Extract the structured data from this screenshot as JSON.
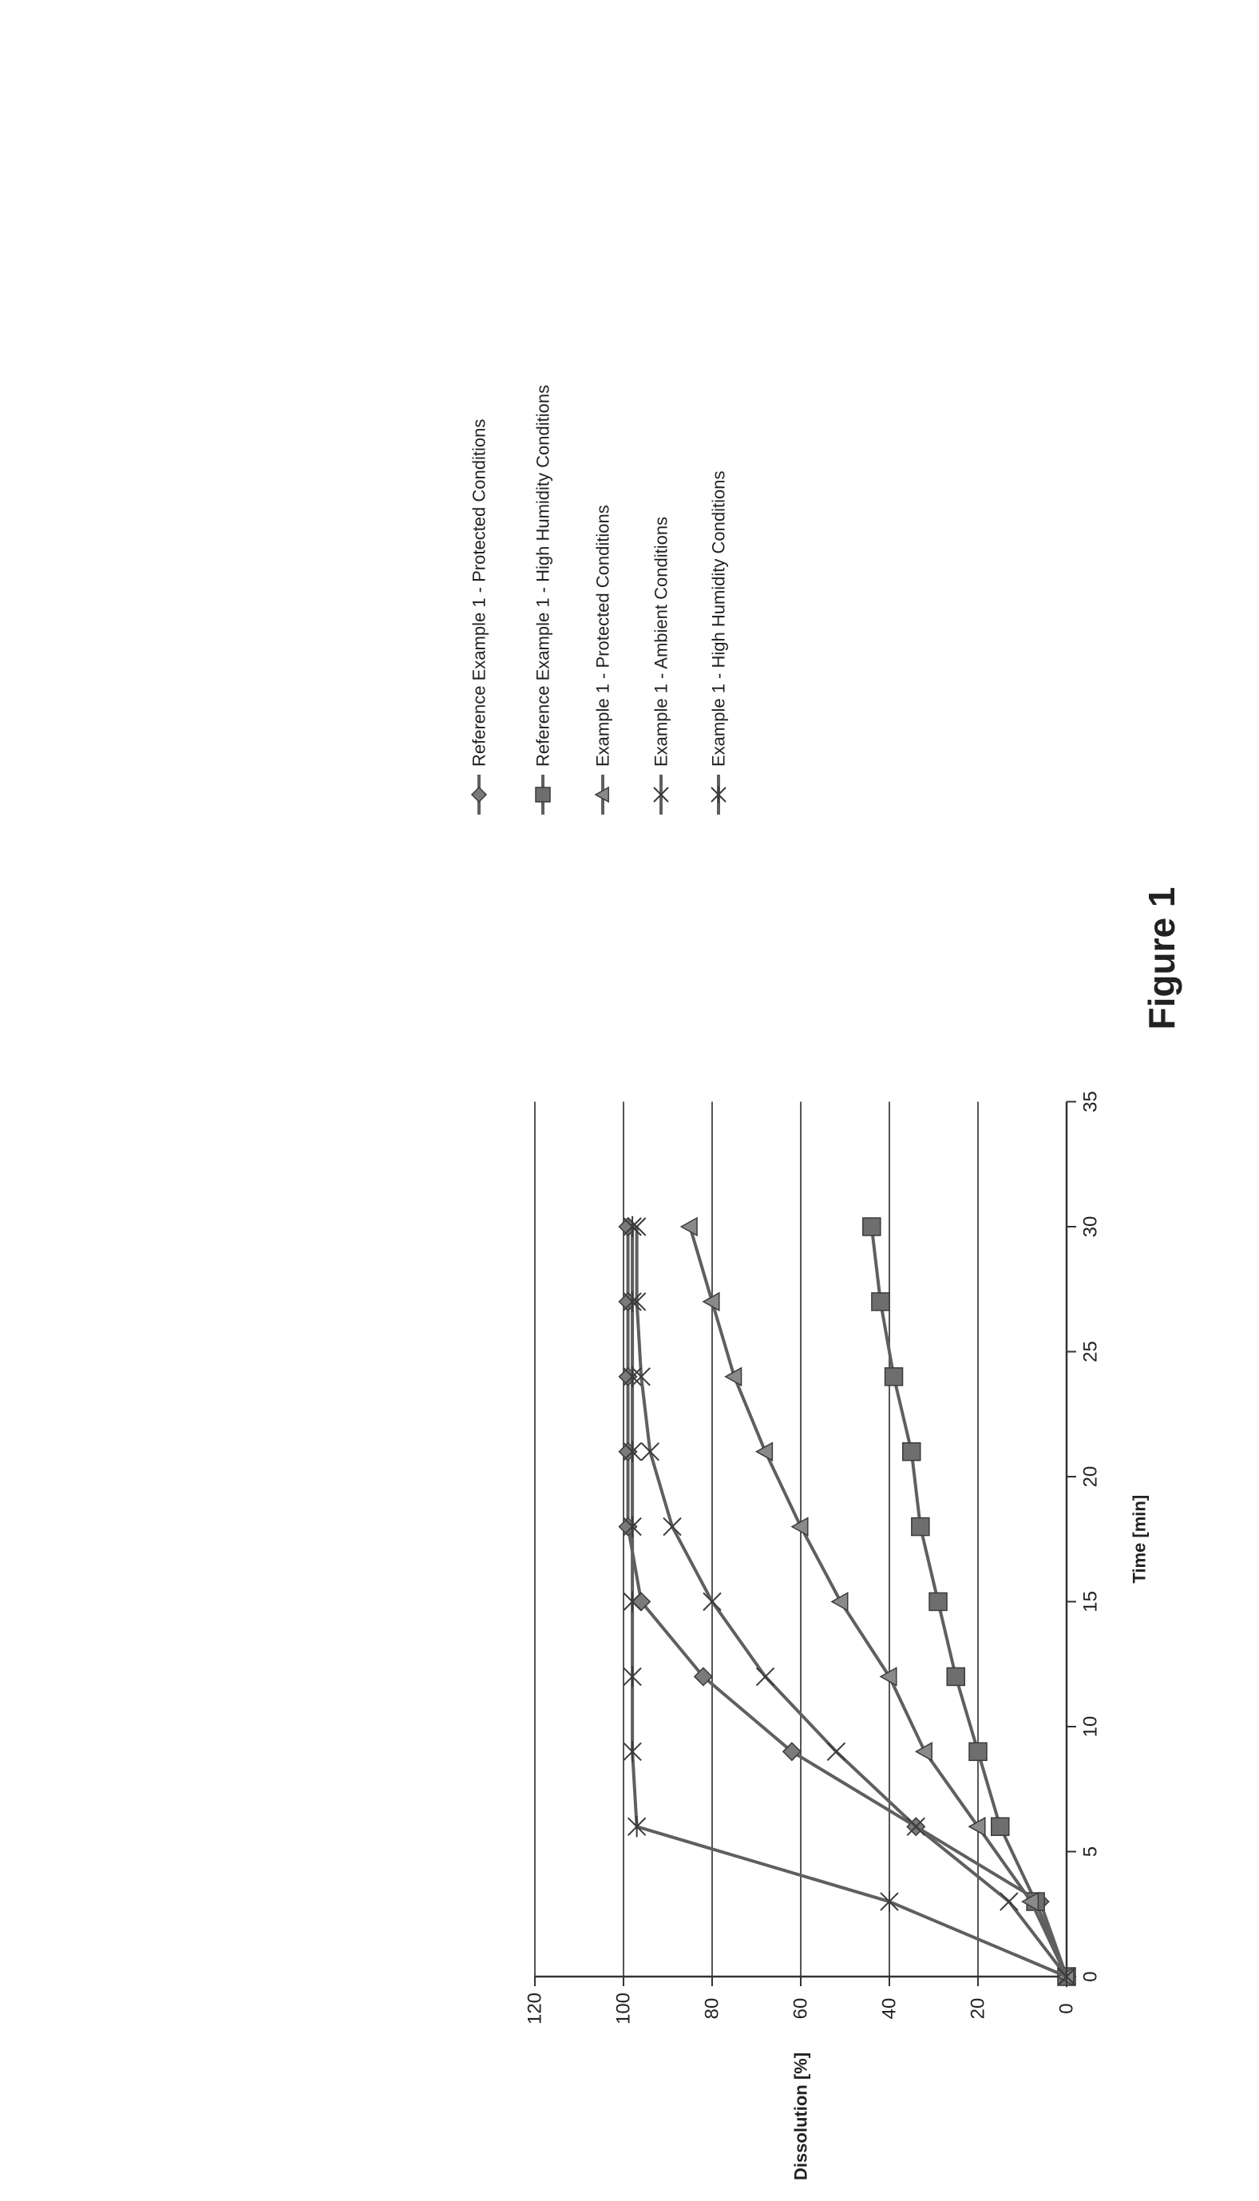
{
  "chart_data": {
    "type": "line",
    "title": "Figure 1",
    "xlabel": "Time [min]",
    "ylabel": "Dissolution [%]",
    "xlim": [
      0,
      35
    ],
    "ylim": [
      0,
      120
    ],
    "xticks": [
      0,
      5,
      10,
      15,
      20,
      25,
      30,
      35
    ],
    "yticks": [
      0,
      20,
      40,
      60,
      80,
      100,
      120
    ],
    "grid": "horizontal",
    "legend": "right",
    "orientation": "rotated 90° counter-clockwise on the page",
    "series": [
      {
        "name": "Reference Example 1 - Protected Conditions",
        "marker": "diamond",
        "x": [
          0,
          3,
          6,
          9,
          12,
          15,
          18,
          21,
          24,
          27,
          30
        ],
        "y": [
          0,
          6,
          34,
          62,
          82,
          96,
          99,
          99,
          99,
          99,
          99
        ]
      },
      {
        "name": "Reference Example 1 - High Humidity Conditions",
        "marker": "square",
        "x": [
          0,
          3,
          6,
          9,
          12,
          15,
          18,
          21,
          24,
          27,
          30
        ],
        "y": [
          0,
          7,
          15,
          20,
          25,
          29,
          33,
          35,
          39,
          42,
          44
        ]
      },
      {
        "name": "Example 1 - Protected Conditions",
        "marker": "triangle",
        "x": [
          0,
          3,
          6,
          9,
          12,
          15,
          18,
          21,
          24,
          27,
          30
        ],
        "y": [
          0,
          8,
          20,
          32,
          40,
          51,
          60,
          68,
          75,
          80,
          85
        ]
      },
      {
        "name": "Example 1 - Ambient Conditions",
        "marker": "x",
        "x": [
          0,
          3,
          6,
          9,
          12,
          15,
          18,
          21,
          24,
          27,
          30
        ],
        "y": [
          0,
          13,
          34,
          52,
          68,
          80,
          89,
          94,
          96,
          97,
          97
        ]
      },
      {
        "name": "Example 1 - High Humidity Conditions",
        "marker": "star",
        "x": [
          0,
          3,
          6,
          9,
          12,
          15,
          18,
          21,
          24,
          27,
          30
        ],
        "y": [
          0,
          40,
          97,
          98,
          98,
          98,
          98,
          98,
          98,
          98,
          98
        ]
      }
    ]
  }
}
